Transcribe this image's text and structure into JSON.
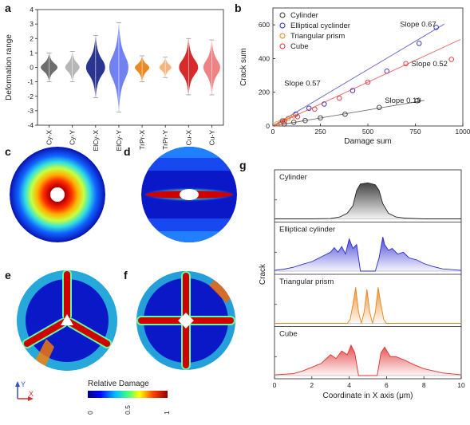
{
  "panels": {
    "a": "a",
    "b": "b",
    "c": "c",
    "d": "d",
    "e": "e",
    "f": "f",
    "g": "g"
  },
  "chart_data": [
    {
      "panel": "a",
      "type": "violin",
      "ylabel": "Deformation range",
      "ylim": [
        -4,
        4
      ],
      "yticks": [
        -4,
        -3,
        -2,
        -1,
        0,
        1,
        2,
        3,
        4
      ],
      "categories": [
        "Cy-X",
        "Cy-Y",
        "ElCy-X",
        "ElCy-Y",
        "TrPr-X",
        "TrPr-Y",
        "Cu-X",
        "Cu-Y"
      ],
      "colors": [
        "#666666",
        "#b3b3b3",
        "#1f2a8c",
        "#6a7cf0",
        "#e8841c",
        "#f2b27a",
        "#d61f1f",
        "#ee7d7d"
      ],
      "min": [
        -1.0,
        -1.0,
        -2.1,
        -3.1,
        -1.0,
        -0.7,
        -1.9,
        -1.9
      ],
      "max": [
        1.0,
        1.1,
        2.2,
        3.1,
        0.8,
        0.7,
        2.0,
        1.9
      ],
      "median": [
        0,
        0,
        0,
        0,
        0,
        0,
        0,
        0
      ],
      "half_width": [
        0.35,
        0.3,
        0.4,
        0.4,
        0.3,
        0.25,
        0.4,
        0.35
      ]
    },
    {
      "panel": "b",
      "type": "scatter",
      "xlabel": "Damage sum",
      "ylabel": "Crack  sum",
      "xlim": [
        0,
        1000
      ],
      "ylim": [
        0,
        700
      ],
      "xticks": [
        0,
        250,
        500,
        750,
        1000
      ],
      "yticks": [
        0,
        200,
        400,
        600
      ],
      "legend_position": "top-left",
      "series": [
        {
          "name": "Cylinder",
          "color": "#3a3a3a",
          "slope_label": "Slope 0.19",
          "fit_slope": 0.19,
          "x": [
            60,
            110,
            170,
            250,
            380,
            560,
            760
          ],
          "y": [
            12,
            22,
            32,
            48,
            70,
            110,
            150
          ]
        },
        {
          "name": "Elliptical cyclinder",
          "color": "#2b2bb8",
          "slope_label": "Slope 0.67",
          "fit_slope": 0.67,
          "x": [
            50,
            120,
            190,
            270,
            420,
            600,
            770,
            860
          ],
          "y": [
            30,
            70,
            105,
            130,
            210,
            325,
            490,
            585
          ]
        },
        {
          "name": "Triangular prism",
          "color": "#e8841c",
          "slope_label": "Slope 0.57",
          "fit_slope": 0.57,
          "x": [
            20,
            40,
            60,
            80,
            110
          ],
          "y": [
            12,
            22,
            32,
            45,
            60
          ]
        },
        {
          "name": "Cube",
          "color": "#e03030",
          "slope_label": "Slope 0.52",
          "fit_slope": 0.52,
          "x": [
            60,
            130,
            220,
            350,
            500,
            700,
            940
          ],
          "y": [
            25,
            55,
            100,
            165,
            260,
            370,
            395
          ]
        }
      ]
    },
    {
      "panel": "g",
      "type": "area",
      "xlabel": "Coordinate in X axis (μm)",
      "ylabel": "Crack",
      "xlim": [
        0,
        10
      ],
      "xticks": [
        0,
        2,
        4,
        6,
        8,
        10
      ],
      "series": [
        {
          "name": "Cylinder",
          "color": "#222222",
          "label_color": "#222222",
          "x": [
            0,
            1,
            2,
            3,
            3.5,
            3.9,
            4.2,
            4.4,
            4.6,
            5.0,
            5.4,
            5.6,
            5.8,
            6.1,
            6.5,
            7,
            8,
            9,
            10
          ],
          "y": [
            0,
            0,
            0,
            0.01,
            0.05,
            0.15,
            0.35,
            0.75,
            0.92,
            0.95,
            0.9,
            0.75,
            0.4,
            0.15,
            0.05,
            0.02,
            0,
            0,
            0
          ]
        },
        {
          "name": "Elliptical cylinder",
          "color": "#2b2bd0",
          "label_color": "#2b2bd0",
          "x": [
            0,
            0.5,
            1,
            1.5,
            2,
            2.4,
            2.8,
            3.0,
            3.2,
            3.4,
            3.6,
            3.8,
            4.0,
            4.2,
            4.4,
            4.6,
            5.4,
            5.6,
            5.8,
            5.9,
            6.1,
            6.3,
            6.6,
            6.9,
            7.2,
            7.6,
            8,
            8.5,
            9,
            10
          ],
          "y": [
            0.02,
            0.05,
            0.1,
            0.18,
            0.25,
            0.35,
            0.45,
            0.5,
            0.62,
            0.5,
            0.65,
            0.45,
            0.85,
            0.6,
            0.7,
            0.0,
            0.0,
            0.35,
            0.9,
            0.7,
            0.55,
            0.6,
            0.45,
            0.5,
            0.35,
            0.3,
            0.2,
            0.12,
            0.06,
            0.02
          ]
        },
        {
          "name": "Triangular prism",
          "color": "#e8841c",
          "label_color": "#e8841c",
          "x": [
            0,
            3.9,
            4.05,
            4.2,
            4.35,
            4.5,
            4.65,
            4.8,
            4.95,
            5.1,
            5.25,
            5.4,
            5.55,
            5.7,
            5.85,
            6.0,
            10
          ],
          "y": [
            0,
            0,
            0.1,
            0.5,
            0.95,
            0.3,
            0.0,
            0.3,
            0.9,
            0.3,
            0.0,
            0.3,
            0.95,
            0.5,
            0.1,
            0,
            0
          ]
        },
        {
          "name": "Cube",
          "color": "#e03030",
          "label_color": "#e03030",
          "x": [
            0,
            1,
            1.5,
            2,
            2.5,
            3.0,
            3.3,
            3.6,
            3.9,
            4.1,
            4.3,
            4.5,
            5.5,
            5.7,
            5.9,
            6.2,
            6.5,
            7.0,
            7.5,
            8,
            9,
            10
          ],
          "y": [
            0.02,
            0.05,
            0.12,
            0.22,
            0.32,
            0.55,
            0.45,
            0.65,
            0.55,
            0.8,
            0.6,
            0.0,
            0.0,
            0.6,
            0.75,
            0.5,
            0.5,
            0.4,
            0.28,
            0.18,
            0.07,
            0.02
          ]
        }
      ]
    },
    {
      "panel": "c-f",
      "type": "heatmap",
      "colorbar_label": "Relative Damage",
      "colorbar_ticks": [
        "0",
        "0.5",
        "1"
      ],
      "axis_labels": {
        "y": "Y",
        "x": "X"
      },
      "maps": [
        {
          "panel": "c",
          "inclusion": "Cylinder"
        },
        {
          "panel": "d",
          "inclusion": "Elliptical cylinder"
        },
        {
          "panel": "e",
          "inclusion": "Triangular prism"
        },
        {
          "panel": "f",
          "inclusion": "Cube"
        }
      ]
    }
  ]
}
